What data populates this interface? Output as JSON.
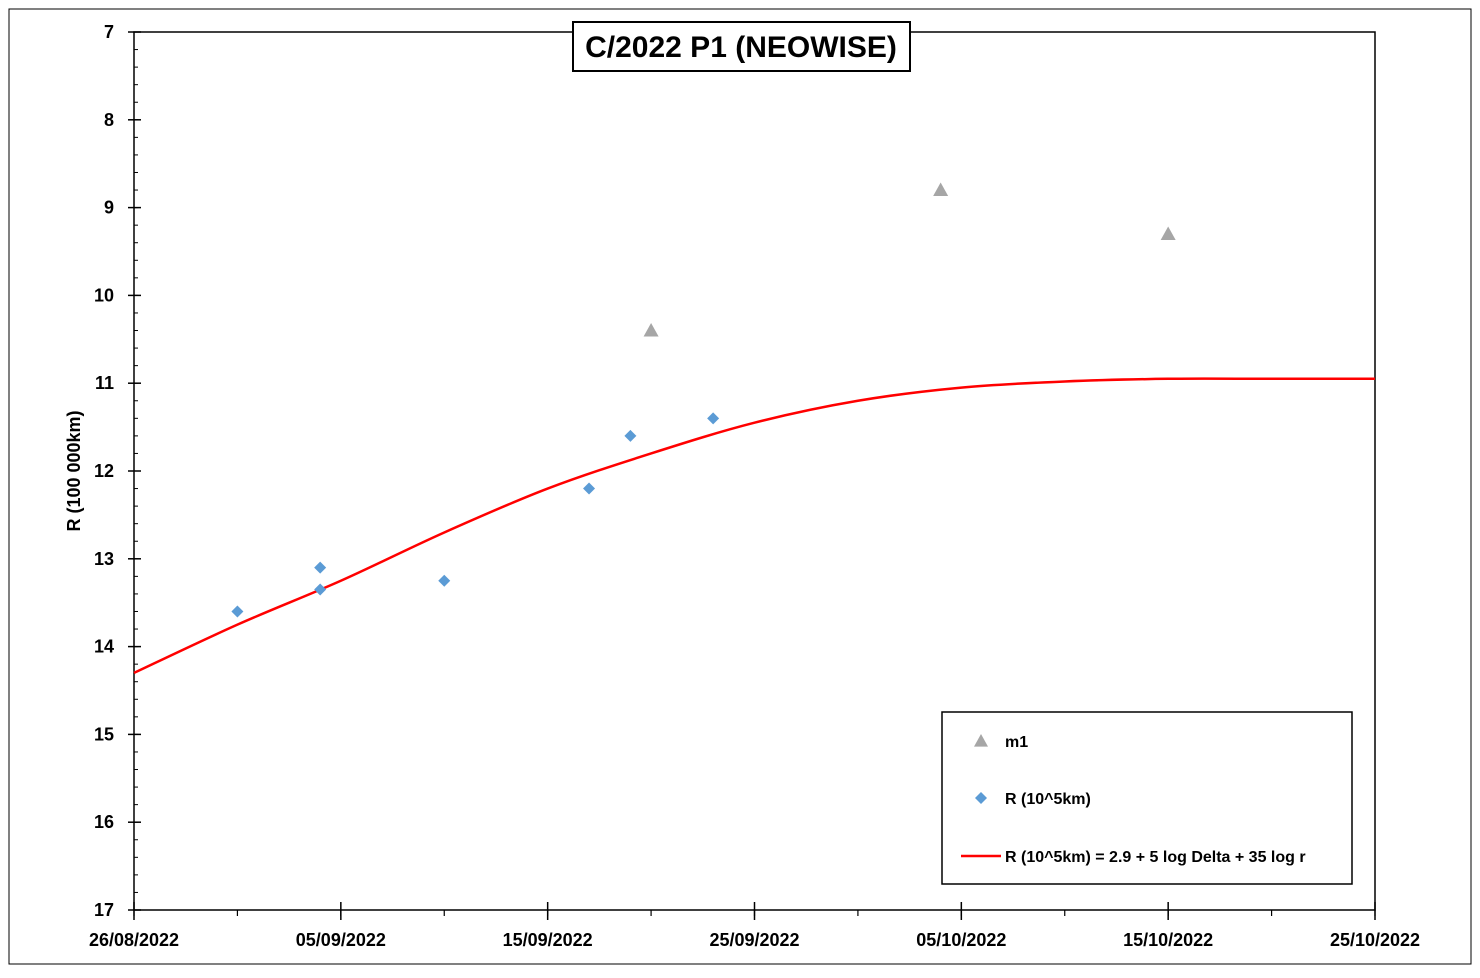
{
  "chart_data": {
    "type": "scatter",
    "title": "C/2022 P1 (NEOWISE)",
    "xlabel": "",
    "ylabel": "R (100 000km)",
    "x_type": "date",
    "xlim": [
      "2022-08-26",
      "2022-10-25"
    ],
    "ylim": [
      7,
      17
    ],
    "y_inverted": true,
    "x_ticks": [
      "2022-08-26",
      "2022-09-05",
      "2022-09-15",
      "2022-09-25",
      "2022-10-05",
      "2022-10-15",
      "2022-10-25"
    ],
    "x_tick_labels": [
      "26/08/2022",
      "05/09/2022",
      "15/09/2022",
      "25/09/2022",
      "05/10/2022",
      "15/10/2022",
      "25/10/2022"
    ],
    "x_minor_step_days": 5,
    "y_ticks": [
      7,
      8,
      9,
      10,
      11,
      12,
      13,
      14,
      15,
      16,
      17
    ],
    "y_tick_labels": [
      "7",
      "8",
      "9",
      "10",
      "11",
      "12",
      "13",
      "14",
      "15",
      "16",
      "17"
    ],
    "y_minor_step": 0.2,
    "grid": false,
    "legend_position": "bottom-right",
    "series": [
      {
        "name": "m1",
        "kind": "scatter",
        "marker": "triangle",
        "color": "#A6A6A6",
        "points": [
          {
            "x": "2022-09-20",
            "y": 10.4
          },
          {
            "x": "2022-10-04",
            "y": 8.8
          },
          {
            "x": "2022-10-15",
            "y": 9.3
          }
        ]
      },
      {
        "name": "R (10^5km)",
        "kind": "scatter",
        "marker": "diamond",
        "color": "#5B9BD5",
        "points": [
          {
            "x": "2022-08-31",
            "y": 13.6
          },
          {
            "x": "2022-09-04",
            "y": 13.1
          },
          {
            "x": "2022-09-04",
            "y": 13.35
          },
          {
            "x": "2022-09-10",
            "y": 13.25
          },
          {
            "x": "2022-09-17",
            "y": 12.2
          },
          {
            "x": "2022-09-19",
            "y": 11.6
          },
          {
            "x": "2022-09-23",
            "y": 11.4
          }
        ]
      },
      {
        "name": "R (10^5km) = 2.9 + 5 log Delta + 35 log r",
        "kind": "line",
        "color": "#FF0000",
        "points": [
          {
            "x": "2022-08-26",
            "y": 14.3
          },
          {
            "x": "2022-08-31",
            "y": 13.75
          },
          {
            "x": "2022-09-05",
            "y": 13.25
          },
          {
            "x": "2022-09-10",
            "y": 12.7
          },
          {
            "x": "2022-09-15",
            "y": 12.2
          },
          {
            "x": "2022-09-20",
            "y": 11.8
          },
          {
            "x": "2022-09-25",
            "y": 11.45
          },
          {
            "x": "2022-09-30",
            "y": 11.2
          },
          {
            "x": "2022-10-05",
            "y": 11.05
          },
          {
            "x": "2022-10-10",
            "y": 10.98
          },
          {
            "x": "2022-10-15",
            "y": 10.95
          },
          {
            "x": "2022-10-20",
            "y": 10.95
          },
          {
            "x": "2022-10-25",
            "y": 10.95
          }
        ]
      }
    ]
  }
}
